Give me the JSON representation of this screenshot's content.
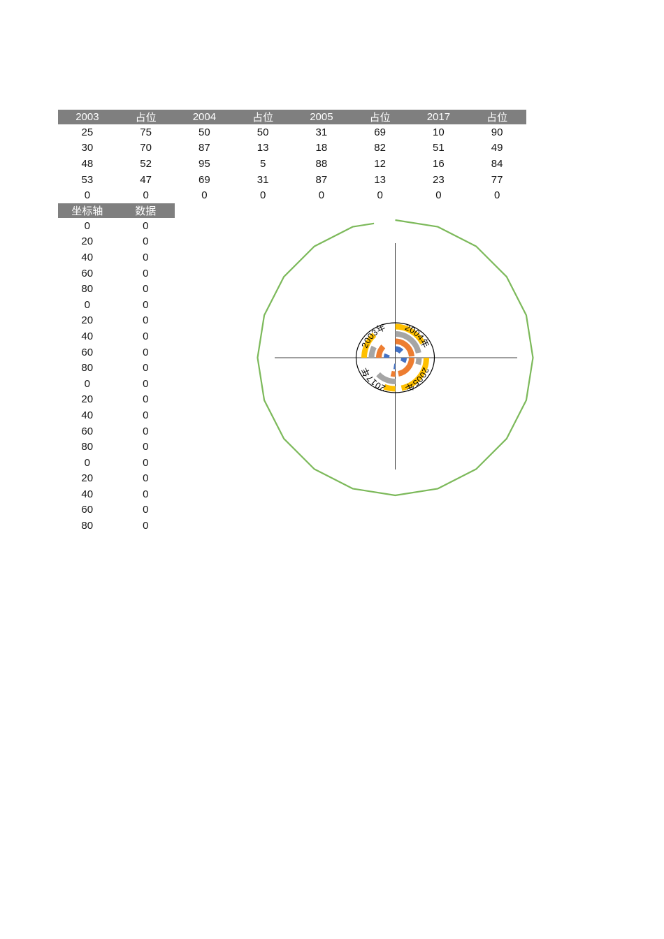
{
  "colors": {
    "header_bg": "#7f7f7f",
    "header_fg": "#ffffff",
    "cell_fg": "#141414",
    "radar_green": "#7cb95a",
    "crosshair": "#3f3f3f",
    "inner_circle_stroke": "#000000",
    "series_blue": "#4472C4",
    "series_orange": "#ED7D31",
    "series_gray": "#A5A5A5",
    "series_yellow": "#FFC000"
  },
  "table1": {
    "headers": [
      "2003",
      "占位",
      "2004",
      "占位",
      "2005",
      "占位",
      "2017",
      "占位"
    ],
    "rows": [
      [
        25,
        75,
        50,
        50,
        31,
        69,
        10,
        90
      ],
      [
        30,
        70,
        87,
        13,
        18,
        82,
        51,
        49
      ],
      [
        48,
        52,
        95,
        5,
        88,
        12,
        16,
        84
      ],
      [
        53,
        47,
        69,
        31,
        87,
        13,
        23,
        77
      ],
      [
        0,
        0,
        0,
        0,
        0,
        0,
        0,
        0
      ]
    ]
  },
  "table2": {
    "headers": [
      "坐标轴",
      "数据"
    ],
    "rows": [
      [
        0,
        0
      ],
      [
        20,
        0
      ],
      [
        40,
        0
      ],
      [
        60,
        0
      ],
      [
        80,
        0
      ],
      [
        0,
        0
      ],
      [
        20,
        0
      ],
      [
        40,
        0
      ],
      [
        60,
        0
      ],
      [
        80,
        0
      ],
      [
        0,
        0
      ],
      [
        20,
        0
      ],
      [
        40,
        0
      ],
      [
        60,
        0
      ],
      [
        80,
        0
      ],
      [
        0,
        0
      ],
      [
        20,
        0
      ],
      [
        40,
        0
      ],
      [
        60,
        0
      ],
      [
        80,
        0
      ]
    ]
  },
  "chart_data": {
    "type": "pie",
    "subtype": "quarter-doughnut-rings-with-radar-axis",
    "title": "",
    "quadrants": [
      {
        "label": "2003年",
        "year": "2003",
        "start_deg": 270
      },
      {
        "label": "2004年",
        "year": "2004",
        "start_deg": 0
      },
      {
        "label": "2005年",
        "year": "2005",
        "start_deg": 90
      },
      {
        "label": "2017年",
        "year": "2017",
        "start_deg": 180
      }
    ],
    "rings_inner_to_outer": [
      {
        "name": "row1",
        "color": "#4472C4",
        "values": [
          25,
          50,
          31,
          10
        ],
        "fillers": [
          75,
          50,
          69,
          90
        ]
      },
      {
        "name": "row3",
        "color": "#ED7D31",
        "values": [
          48,
          95,
          88,
          16
        ],
        "fillers": [
          52,
          5,
          12,
          84
        ]
      },
      {
        "name": "row2",
        "color": "#A5A5A5",
        "values": [
          30,
          87,
          18,
          51
        ],
        "fillers": [
          70,
          13,
          82,
          49
        ]
      },
      {
        "name": "row4",
        "color": "#FFC000",
        "values": [
          53,
          69,
          87,
          23
        ],
        "fillers": [
          47,
          31,
          13,
          77
        ]
      }
    ],
    "filler_note": "each 占位 value = 100 - value; filler slices are unfilled (invisible)",
    "value_scale": "each year pair spans 90°, value% of 90° drawn clockwise from quadrant start",
    "outer_radar_ring": {
      "sides": 20,
      "color": "#7cb95a",
      "gap_near_top": true
    },
    "axis_helper_labels": [
      0,
      20,
      40,
      60,
      80
    ],
    "axis_helper_data_value": 0,
    "crosshair_axes": true,
    "legend": "none"
  }
}
